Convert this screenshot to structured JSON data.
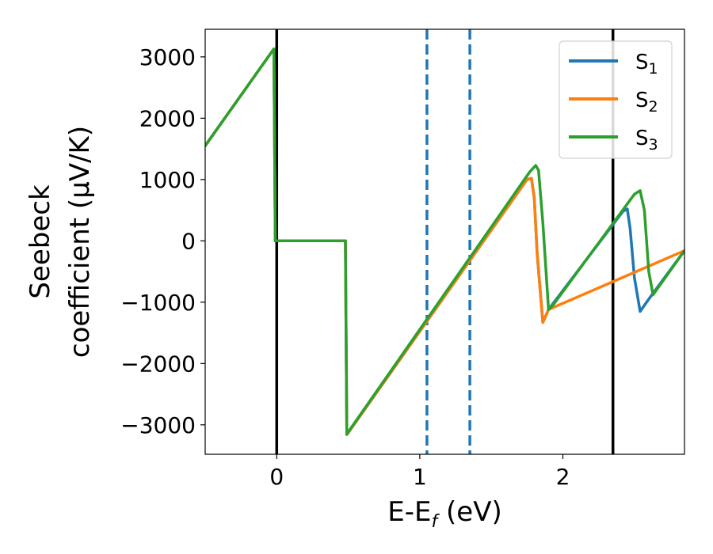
{
  "chart_data": {
    "type": "line",
    "xlabel": "E-E",
    "xlabel_sub": "f",
    "xlabel_unit": " (eV)",
    "ylabel_line1": "Seebeck",
    "ylabel_line2": "coefficient  (μV/K)",
    "xlim": [
      -0.5,
      2.85
    ],
    "ylim": [
      -3480,
      3450
    ],
    "xticks": [
      0,
      1,
      2
    ],
    "xtick_labels": [
      "0",
      "1",
      "2"
    ],
    "yticks": [
      3000,
      2000,
      1000,
      0,
      -1000,
      -2000,
      -3000
    ],
    "ytick_labels": [
      "3000",
      "2000",
      "1000",
      "0",
      "−1000",
      "−2000",
      "−3000"
    ],
    "grid": false,
    "legend_position": "top-right",
    "vertical_lines": [
      {
        "x": 0.0,
        "style": "solid",
        "color": "#000000"
      },
      {
        "x": 1.05,
        "style": "dashed",
        "color": "#1f77b4"
      },
      {
        "x": 1.35,
        "style": "dashed",
        "color": "#1f77b4"
      },
      {
        "x": 2.35,
        "style": "solid",
        "color": "#000000"
      }
    ],
    "series": [
      {
        "name": "S",
        "sub": "1",
        "color": "#1f77b4",
        "x": [
          -0.5,
          -0.02,
          -0.01,
          0.48,
          0.49,
          1.75,
          1.78,
          1.8,
          1.82,
          1.86,
          1.9,
          2.42,
          2.45,
          2.47,
          2.5,
          2.54,
          2.6,
          2.85
        ],
        "y": [
          1550,
          3130,
          0,
          0,
          -3160,
          1000,
          1020,
          700,
          -200,
          -1330,
          -1120,
          480,
          520,
          200,
          -600,
          -1150,
          -950,
          -160
        ]
      },
      {
        "name": "S",
        "sub": "2",
        "color": "#ff7f0e",
        "x": [
          -0.5,
          -0.02,
          -0.01,
          0.48,
          0.49,
          1.75,
          1.78,
          1.8,
          1.82,
          1.86,
          1.9,
          2.85
        ],
        "y": [
          1550,
          3130,
          0,
          0,
          -3160,
          1000,
          1020,
          700,
          -200,
          -1330,
          -1120,
          -160
        ]
      },
      {
        "name": "S",
        "sub": "3",
        "color": "#2ca02c",
        "x": [
          -0.5,
          -0.02,
          -0.01,
          0.48,
          0.49,
          1.77,
          1.81,
          1.83,
          1.86,
          1.9,
          1.93,
          2.5,
          2.54,
          2.57,
          2.6,
          2.63,
          2.85
        ],
        "y": [
          1550,
          3130,
          0,
          0,
          -3150,
          1130,
          1230,
          1150,
          300,
          -1120,
          -1050,
          760,
          820,
          500,
          -500,
          -880,
          -160
        ]
      }
    ]
  }
}
